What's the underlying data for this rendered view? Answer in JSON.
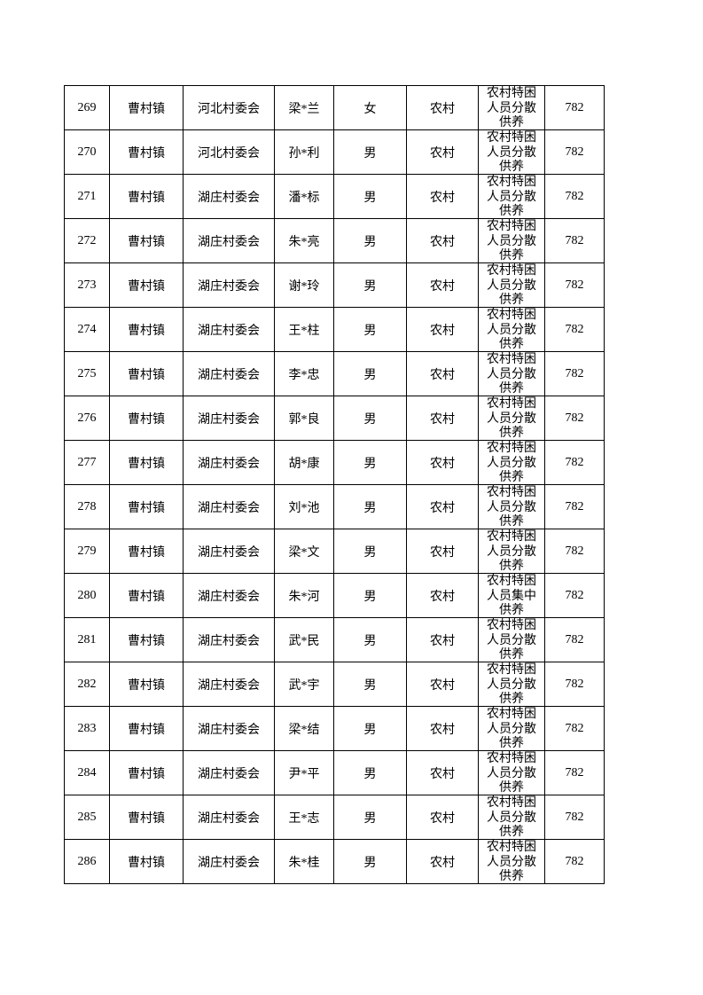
{
  "rows": [
    {
      "no": "269",
      "town": "曹村镇",
      "village": "河北村委会",
      "name": "梁*兰",
      "gender": "女",
      "area": "农村",
      "category": "农村特困人员分散供养",
      "amount": "782"
    },
    {
      "no": "270",
      "town": "曹村镇",
      "village": "河北村委会",
      "name": "孙*利",
      "gender": "男",
      "area": "农村",
      "category": "农村特困人员分散供养",
      "amount": "782"
    },
    {
      "no": "271",
      "town": "曹村镇",
      "village": "湖庄村委会",
      "name": "潘*标",
      "gender": "男",
      "area": "农村",
      "category": "农村特困人员分散供养",
      "amount": "782"
    },
    {
      "no": "272",
      "town": "曹村镇",
      "village": "湖庄村委会",
      "name": "朱*亮",
      "gender": "男",
      "area": "农村",
      "category": "农村特困人员分散供养",
      "amount": "782"
    },
    {
      "no": "273",
      "town": "曹村镇",
      "village": "湖庄村委会",
      "name": "谢*玲",
      "gender": "男",
      "area": "农村",
      "category": "农村特困人员分散供养",
      "amount": "782"
    },
    {
      "no": "274",
      "town": "曹村镇",
      "village": "湖庄村委会",
      "name": "王*柱",
      "gender": "男",
      "area": "农村",
      "category": "农村特困人员分散供养",
      "amount": "782"
    },
    {
      "no": "275",
      "town": "曹村镇",
      "village": "湖庄村委会",
      "name": "李*忠",
      "gender": "男",
      "area": "农村",
      "category": "农村特困人员分散供养",
      "amount": "782"
    },
    {
      "no": "276",
      "town": "曹村镇",
      "village": "湖庄村委会",
      "name": "郭*良",
      "gender": "男",
      "area": "农村",
      "category": "农村特困人员分散供养",
      "amount": "782"
    },
    {
      "no": "277",
      "town": "曹村镇",
      "village": "湖庄村委会",
      "name": "胡*康",
      "gender": "男",
      "area": "农村",
      "category": "农村特困人员分散供养",
      "amount": "782"
    },
    {
      "no": "278",
      "town": "曹村镇",
      "village": "湖庄村委会",
      "name": "刘*池",
      "gender": "男",
      "area": "农村",
      "category": "农村特困人员分散供养",
      "amount": "782"
    },
    {
      "no": "279",
      "town": "曹村镇",
      "village": "湖庄村委会",
      "name": "梁*文",
      "gender": "男",
      "area": "农村",
      "category": "农村特困人员分散供养",
      "amount": "782"
    },
    {
      "no": "280",
      "town": "曹村镇",
      "village": "湖庄村委会",
      "name": "朱*河",
      "gender": "男",
      "area": "农村",
      "category": "农村特困人员集中供养",
      "amount": "782"
    },
    {
      "no": "281",
      "town": "曹村镇",
      "village": "湖庄村委会",
      "name": "武*民",
      "gender": "男",
      "area": "农村",
      "category": "农村特困人员分散供养",
      "amount": "782"
    },
    {
      "no": "282",
      "town": "曹村镇",
      "village": "湖庄村委会",
      "name": "武*宇",
      "gender": "男",
      "area": "农村",
      "category": "农村特困人员分散供养",
      "amount": "782"
    },
    {
      "no": "283",
      "town": "曹村镇",
      "village": "湖庄村委会",
      "name": "梁*结",
      "gender": "男",
      "area": "农村",
      "category": "农村特困人员分散供养",
      "amount": "782"
    },
    {
      "no": "284",
      "town": "曹村镇",
      "village": "湖庄村委会",
      "name": "尹*平",
      "gender": "男",
      "area": "农村",
      "category": "农村特困人员分散供养",
      "amount": "782"
    },
    {
      "no": "285",
      "town": "曹村镇",
      "village": "湖庄村委会",
      "name": "王*志",
      "gender": "男",
      "area": "农村",
      "category": "农村特困人员分散供养",
      "amount": "782"
    },
    {
      "no": "286",
      "town": "曹村镇",
      "village": "湖庄村委会",
      "name": "朱*桂",
      "gender": "男",
      "area": "农村",
      "category": "农村特困人员分散供养",
      "amount": "782"
    }
  ]
}
